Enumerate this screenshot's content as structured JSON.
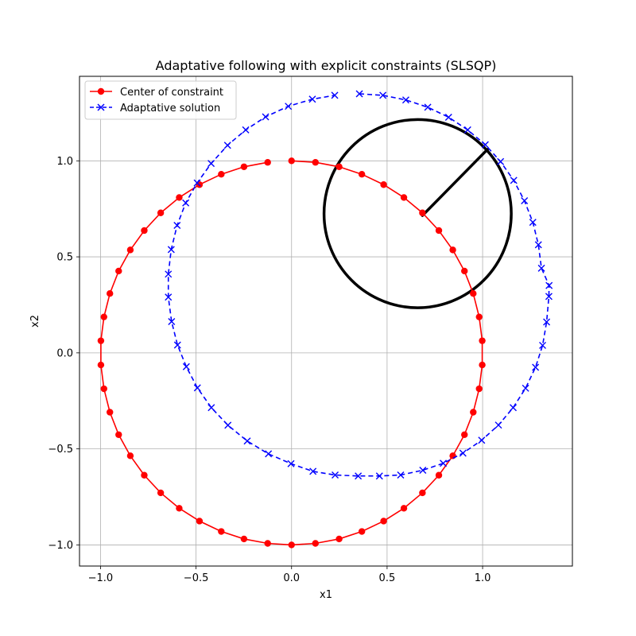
{
  "chart_data": {
    "type": "line",
    "title": "Adaptative following with explicit constraints (SLSQP)",
    "xlabel": "x1",
    "ylabel": "x2",
    "xlim": [
      -1.11,
      1.47
    ],
    "ylim": [
      -1.11,
      1.44
    ],
    "xticks": [
      -1.0,
      -0.5,
      0.0,
      0.5,
      1.0
    ],
    "xtick_labels": [
      "−1.0",
      "−0.5",
      "0.0",
      "0.5",
      "1.0"
    ],
    "yticks": [
      -1.0,
      -0.5,
      0.0,
      0.5,
      1.0
    ],
    "ytick_labels": [
      "−1.0",
      "−0.5",
      "0.0",
      "0.5",
      "1.0"
    ],
    "grid": true,
    "legend_position": "upper-left",
    "series": [
      {
        "name": "Center of constraint",
        "color": "#ff0000",
        "linestyle": "solid",
        "marker": "circle",
        "points": [
          [
            0.0,
            1.0
          ],
          [
            0.125,
            0.992
          ],
          [
            0.249,
            0.969
          ],
          [
            0.368,
            0.93
          ],
          [
            0.482,
            0.876
          ],
          [
            0.588,
            0.809
          ],
          [
            0.685,
            0.729
          ],
          [
            0.771,
            0.637
          ],
          [
            0.844,
            0.536
          ],
          [
            0.905,
            0.426
          ],
          [
            0.951,
            0.309
          ],
          [
            0.982,
            0.187
          ],
          [
            0.998,
            0.063
          ],
          [
            0.998,
            -0.063
          ],
          [
            0.982,
            -0.187
          ],
          [
            0.951,
            -0.309
          ],
          [
            0.905,
            -0.426
          ],
          [
            0.844,
            -0.536
          ],
          [
            0.771,
            -0.637
          ],
          [
            0.685,
            -0.729
          ],
          [
            0.588,
            -0.809
          ],
          [
            0.482,
            -0.876
          ],
          [
            0.368,
            -0.93
          ],
          [
            0.249,
            -0.969
          ],
          [
            0.125,
            -0.992
          ],
          [
            0.0,
            -1.0
          ],
          [
            -0.125,
            -0.992
          ],
          [
            -0.249,
            -0.969
          ],
          [
            -0.368,
            -0.93
          ],
          [
            -0.482,
            -0.876
          ],
          [
            -0.588,
            -0.809
          ],
          [
            -0.685,
            -0.729
          ],
          [
            -0.771,
            -0.637
          ],
          [
            -0.844,
            -0.536
          ],
          [
            -0.905,
            -0.426
          ],
          [
            -0.951,
            -0.309
          ],
          [
            -0.982,
            -0.187
          ],
          [
            -0.998,
            -0.063
          ],
          [
            -0.998,
            0.063
          ],
          [
            -0.982,
            0.187
          ],
          [
            -0.951,
            0.309
          ],
          [
            -0.905,
            0.426
          ],
          [
            -0.844,
            0.536
          ],
          [
            -0.771,
            0.637
          ],
          [
            -0.685,
            0.729
          ],
          [
            -0.588,
            0.809
          ],
          [
            -0.482,
            0.876
          ],
          [
            -0.368,
            0.93
          ],
          [
            -0.249,
            0.969
          ],
          [
            -0.125,
            0.992
          ]
        ]
      },
      {
        "name": "Adaptative solution",
        "color": "#0000ff",
        "linestyle": "dashed",
        "marker": "x",
        "points": [
          [
            0.355,
            1.349
          ],
          [
            0.478,
            1.341
          ],
          [
            0.598,
            1.317
          ],
          [
            0.713,
            1.279
          ],
          [
            0.822,
            1.227
          ],
          [
            0.922,
            1.161
          ],
          [
            1.014,
            1.084
          ],
          [
            1.094,
            0.996
          ],
          [
            1.163,
            0.898
          ],
          [
            1.219,
            0.792
          ],
          [
            1.263,
            0.68
          ],
          [
            1.292,
            0.563
          ],
          [
            1.308,
            0.441
          ],
          [
            1.348,
            0.351
          ],
          [
            1.347,
            0.294
          ],
          [
            1.335,
            0.161
          ],
          [
            1.314,
            0.039
          ],
          [
            1.277,
            -0.075
          ],
          [
            1.225,
            -0.184
          ],
          [
            1.16,
            -0.285
          ],
          [
            1.083,
            -0.376
          ],
          [
            0.995,
            -0.455
          ],
          [
            0.897,
            -0.522
          ],
          [
            0.794,
            -0.575
          ],
          [
            0.687,
            -0.611
          ],
          [
            0.571,
            -0.636
          ],
          [
            0.46,
            -0.641
          ],
          [
            0.349,
            -0.641
          ],
          [
            0.228,
            -0.636
          ],
          [
            0.112,
            -0.617
          ],
          [
            -0.003,
            -0.577
          ],
          [
            -0.121,
            -0.526
          ],
          [
            -0.232,
            -0.459
          ],
          [
            -0.333,
            -0.377
          ],
          [
            -0.42,
            -0.285
          ],
          [
            -0.493,
            -0.182
          ],
          [
            -0.551,
            -0.072
          ],
          [
            -0.597,
            0.041
          ],
          [
            -0.628,
            0.163
          ],
          [
            -0.645,
            0.29
          ],
          [
            -0.645,
            0.41
          ],
          [
            -0.63,
            0.538
          ],
          [
            -0.599,
            0.664
          ],
          [
            -0.554,
            0.781
          ],
          [
            -0.494,
            0.885
          ],
          [
            -0.421,
            0.986
          ],
          [
            -0.335,
            1.081
          ],
          [
            -0.24,
            1.161
          ],
          [
            -0.136,
            1.229
          ],
          [
            -0.017,
            1.284
          ],
          [
            0.109,
            1.321
          ],
          [
            0.226,
            1.341
          ]
        ]
      }
    ],
    "annotation_circle": {
      "center": [
        0.66,
        0.725
      ],
      "radius": 0.49,
      "color": "#000000"
    },
    "annotation_segment": {
      "from": [
        0.685,
        0.715
      ],
      "to": [
        1.026,
        1.06
      ],
      "color": "#000000"
    }
  }
}
